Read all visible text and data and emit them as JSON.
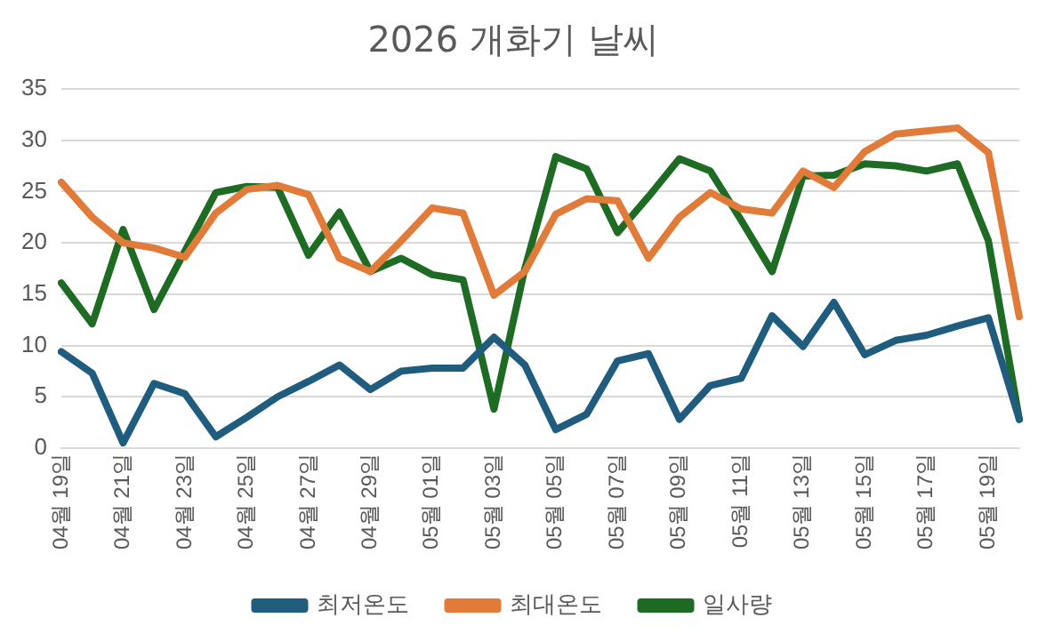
{
  "chart_data": {
    "type": "line",
    "title": "2026 개화기 날씨",
    "categories": [
      "04월 19일",
      null,
      "04월 21일",
      null,
      "04월 23일",
      null,
      "04월 25일",
      null,
      "04월 27일",
      null,
      "04월 29일",
      null,
      "05월 01일",
      null,
      "05월 03일",
      null,
      "05월 05일",
      null,
      "05월 07일",
      null,
      "05월 09일",
      null,
      "05월 11일",
      null,
      "05월 13일",
      null,
      "05월 15일",
      null,
      "05월 17일",
      null,
      "05월 19일",
      null
    ],
    "series": [
      {
        "name": "최저온도",
        "color": "#1f5c7e",
        "values": [
          9.4,
          7.3,
          0.5,
          6.3,
          5.3,
          1.1,
          3.0,
          5.0,
          6.5,
          8.1,
          5.7,
          7.5,
          7.8,
          7.8,
          10.8,
          8.1,
          1.8,
          3.3,
          8.5,
          9.2,
          2.8,
          6.1,
          6.8,
          12.9,
          9.9,
          14.2,
          9.1,
          10.5,
          11.0,
          11.9,
          12.7,
          2.8
        ]
      },
      {
        "name": "최대온도",
        "color": "#e07b39",
        "values": [
          25.9,
          22.5,
          20.0,
          19.5,
          18.6,
          22.9,
          25.2,
          25.6,
          24.7,
          18.5,
          17.2,
          20.2,
          23.4,
          22.9,
          14.9,
          17.2,
          22.8,
          24.3,
          24.1,
          18.5,
          22.5,
          24.9,
          23.3,
          22.9,
          27.0,
          25.4,
          28.9,
          30.6,
          30.9,
          31.2,
          28.8,
          12.8
        ]
      },
      {
        "name": "일사량",
        "color": "#1e6b24",
        "values": [
          16.1,
          12.1,
          21.3,
          13.5,
          19.2,
          24.9,
          25.5,
          25.4,
          18.8,
          23.0,
          17.2,
          18.5,
          16.9,
          16.4,
          3.8,
          17.5,
          28.4,
          27.2,
          21.0,
          24.5,
          28.2,
          27.0,
          22.2,
          17.2,
          26.5,
          26.6,
          27.7,
          27.5,
          27.0,
          27.7,
          20.2,
          2.8
        ]
      }
    ],
    "ylim": [
      0,
      35
    ],
    "yticks": [
      0,
      5,
      10,
      15,
      20,
      25,
      30,
      35
    ],
    "grid": "y",
    "legend": "bottom",
    "marker": "none",
    "line_style": "solid"
  }
}
